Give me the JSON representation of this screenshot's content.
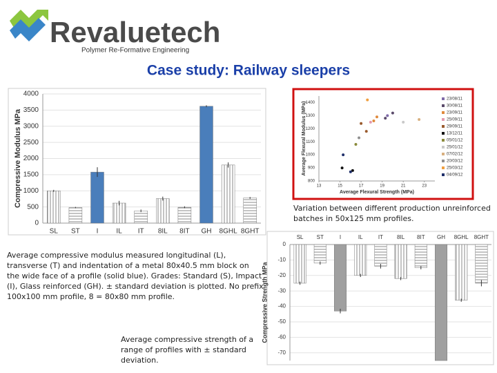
{
  "header": {
    "logo": "Revaluetech",
    "tagline": "Polymer Re-Formative Engineering",
    "title": "Case study: Railway sleepers"
  },
  "captions": [
    "Variation between different production unreinforced batches in 50x125 mm profiles.",
    "Average compressive modulus measured longitudinal (L), transverse (T) and indentation of a metal 80x40.5 mm block on the wide face of a profile (solid blue). Grades: Standard (S), Impact (I), Glass reinforced (GH). ± standard deviation is plotted. No prefix 100x100 mm profile, 8 = 80x80 mm profile.",
    "Average compressive strength of a range of profiles with ± standard deviation."
  ],
  "chart_data": [
    {
      "type": "bar",
      "y_label": "Compressive Modulus MPa",
      "categories": [
        "SL",
        "ST",
        "I",
        "IL",
        "IT",
        "8IL",
        "8IT",
        "GH",
        "8GHL",
        "8GHT"
      ],
      "values": [
        1000,
        480,
        1580,
        620,
        380,
        760,
        490,
        3620,
        1800,
        780
      ],
      "errors": [
        30,
        20,
        150,
        70,
        40,
        60,
        30,
        30,
        80,
        30
      ],
      "fills": [
        "vertical",
        "horizontal",
        "solid",
        "vertical",
        "horizontal",
        "vertical",
        "horizontal",
        "solid",
        "vertical",
        "horizontal"
      ],
      "color": "#4a7ebb",
      "ylim": [
        0,
        4000
      ],
      "yticks": [
        0,
        500,
        1000,
        1500,
        2000,
        2500,
        3000,
        3500,
        4000
      ],
      "grid": true,
      "x_axis_position": "bottom"
    },
    {
      "type": "scatter",
      "x_label": "Average Flexural Strength (MPa)",
      "y_label": "Average Flexural Modulus (MPa)",
      "xlim": [
        13,
        24
      ],
      "xticks": [
        13,
        15,
        17,
        19,
        21,
        23
      ],
      "ylim": [
        800,
        1450
      ],
      "yticks": [
        800,
        900,
        1000,
        1100,
        1200,
        1300,
        1400
      ],
      "grid": false,
      "series": [
        {
          "name": "23/08/11",
          "color": "#7f6aa8",
          "x": [
            19.5
          ],
          "y": [
            1300
          ]
        },
        {
          "name": "30/08/11",
          "color": "#5a4a6a",
          "x": [
            20,
            19.3
          ],
          "y": [
            1320,
            1280
          ]
        },
        {
          "name": "23/09/11",
          "color": "#e08a3c",
          "x": [
            18.5,
            18.2
          ],
          "y": [
            1290,
            1260
          ]
        },
        {
          "name": "25/09/11",
          "color": "#e29ab0",
          "x": [
            17.9
          ],
          "y": [
            1250
          ]
        },
        {
          "name": "29/09/11",
          "color": "#9a5b2e",
          "x": [
            17,
            17.5
          ],
          "y": [
            1240,
            1180
          ]
        },
        {
          "name": "13/12/11",
          "color": "#111111",
          "x": [
            15.2,
            16.2
          ],
          "y": [
            900,
            880
          ]
        },
        {
          "name": "05/01/12",
          "color": "#8a8a3a",
          "x": [
            16.5
          ],
          "y": [
            1080
          ]
        },
        {
          "name": "25/01/12",
          "color": "#c9c9c9",
          "x": [
            21
          ],
          "y": [
            1250
          ]
        },
        {
          "name": "07/02/12",
          "color": "#d8b080",
          "x": [
            22.5
          ],
          "y": [
            1270
          ]
        },
        {
          "name": "20/03/12",
          "color": "#909090",
          "x": [
            16.8
          ],
          "y": [
            1130
          ]
        },
        {
          "name": "25/03/12",
          "color": "#f0a040",
          "x": [
            17.6
          ],
          "y": [
            1420
          ]
        },
        {
          "name": "04/09/12",
          "color": "#1f2f6a",
          "x": [
            15.3,
            16
          ],
          "y": [
            1000,
            870
          ]
        }
      ]
    },
    {
      "type": "bar",
      "y_label": "Compressive Strength MPa",
      "categories": [
        "SL",
        "ST",
        "I",
        "IL",
        "IT",
        "8IL",
        "8IT",
        "GH",
        "8GHL",
        "8GHT"
      ],
      "values": [
        -25,
        -12,
        -43,
        -20,
        -14,
        -22,
        -15,
        -75,
        -36,
        -25
      ],
      "errors": [
        1,
        1,
        1.5,
        1,
        1.5,
        1,
        1,
        0,
        1,
        2
      ],
      "fills": [
        "vertical",
        "horizontal",
        "solid",
        "vertical",
        "horizontal",
        "vertical",
        "horizontal",
        "solid",
        "vertical",
        "horizontal"
      ],
      "color": "#a0a0a0",
      "ylim": [
        -75,
        0
      ],
      "yticks": [
        0,
        -10,
        -20,
        -30,
        -40,
        -50,
        -60,
        -70
      ],
      "grid": true,
      "x_axis_position": "top"
    }
  ]
}
